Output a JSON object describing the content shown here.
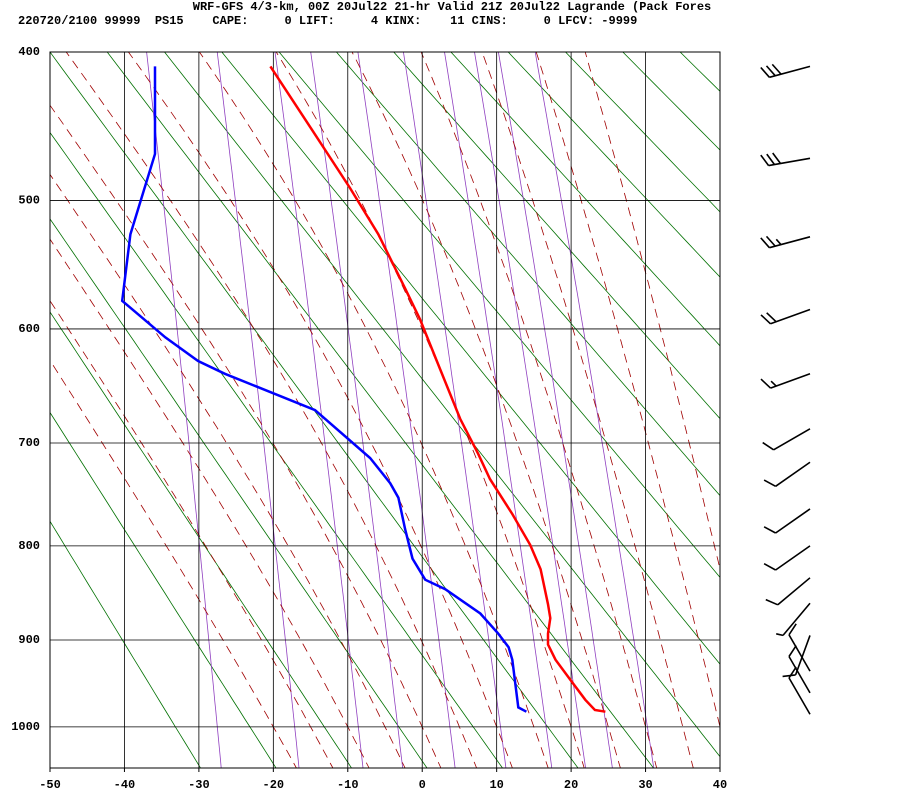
{
  "chart_data": {
    "type": "skewt",
    "title": "WRF-GFS 4/3-km, 00Z 20Jul22 21-hr Valid 21Z 20Jul22 Lagrande (Pack Fores",
    "subtitle": "220720/2100 99999  PS15    CAPE:     0 LIFT:     4 KINX:    11 CINS:     0 LFCV: -9999",
    "xlim": [
      -50,
      40
    ],
    "xticks": [
      -50,
      -40,
      -30,
      -20,
      -10,
      0,
      10,
      20,
      30,
      40
    ],
    "ylim": [
      400,
      1050
    ],
    "yticks": [
      400,
      500,
      600,
      700,
      800,
      900,
      1000
    ],
    "grid": true,
    "series": [
      {
        "color": "#ff0000",
        "pressure": [
          982,
          980,
          968,
          945,
          922,
          905,
          893,
          876,
          861,
          824,
          799,
          768,
          734,
          710,
          678,
          634,
          592,
          567,
          525,
          491,
          449,
          409
        ],
        "values": [
          24.6,
          23.2,
          21.9,
          19.9,
          17.9,
          16.9,
          16.9,
          17.2,
          16.9,
          15.9,
          14.5,
          12.1,
          9.1,
          7.5,
          5.1,
          2.4,
          -0.3,
          -2.3,
          -5.9,
          -9.7,
          -15.0,
          -20.4
        ]
      },
      {
        "color": "#0000ff",
        "pressure": [
          982,
          977,
          922,
          908,
          893,
          871,
          845,
          835,
          813,
          783,
          752,
          738,
          714,
          670,
          638,
          627,
          607,
          577,
          525,
          467,
          409
        ],
        "values": [
          14.0,
          12.9,
          12.1,
          11.6,
          10.2,
          7.8,
          3.1,
          0.4,
          -1.3,
          -2.3,
          -3.2,
          -4.3,
          -7.0,
          -14.4,
          -26.5,
          -30.1,
          -34.5,
          -40.3,
          -39.2,
          -35.9,
          -35.9
        ]
      }
    ],
    "wind": [
      {
        "pressure": 409,
        "direction": 255,
        "speed": 30
      },
      {
        "pressure": 470,
        "direction": 260,
        "speed": 30
      },
      {
        "pressure": 527,
        "direction": 255,
        "speed": 25
      },
      {
        "pressure": 584,
        "direction": 250,
        "speed": 20
      },
      {
        "pressure": 638,
        "direction": 250,
        "speed": 15
      },
      {
        "pressure": 687,
        "direction": 240,
        "speed": 10
      },
      {
        "pressure": 718,
        "direction": 235,
        "speed": 10
      },
      {
        "pressure": 763,
        "direction": 235,
        "speed": 10
      },
      {
        "pressure": 800,
        "direction": 235,
        "speed": 10
      },
      {
        "pressure": 833,
        "direction": 230,
        "speed": 10
      },
      {
        "pressure": 860,
        "direction": 220,
        "speed": 5
      },
      {
        "pressure": 895,
        "direction": 200,
        "speed": 10
      },
      {
        "pressure": 935,
        "direction": 330,
        "speed": 10
      },
      {
        "pressure": 960,
        "direction": 330,
        "speed": 10
      },
      {
        "pressure": 985,
        "direction": 330,
        "speed": 10
      }
    ]
  }
}
